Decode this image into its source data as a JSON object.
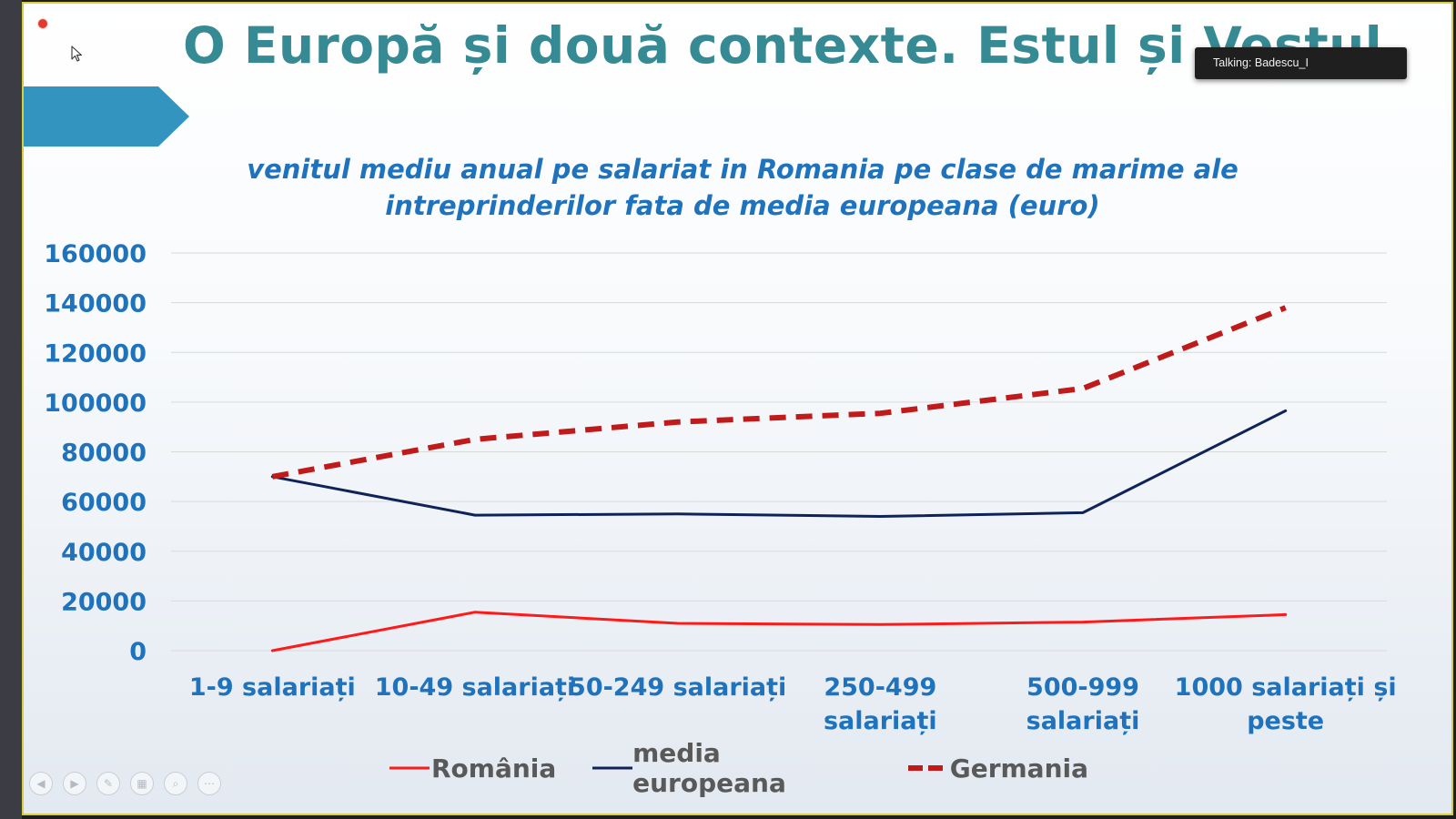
{
  "slide": {
    "title": "O Europă și două contexte. Estul și Vestul"
  },
  "overlay": {
    "talking": "Talking: Badescu_I"
  },
  "icons": {
    "recording": "record-indicator-icon",
    "cursor": "mouse-pointer-icon",
    "nav": [
      "previous-slide-icon",
      "next-slide-icon",
      "pen-icon",
      "grid-view-icon",
      "zoom-icon",
      "more-options-icon"
    ]
  },
  "colors": {
    "title": "#358a94",
    "banner": "#3494c0",
    "axis_text": "#1f73bd",
    "romania": "#ff1a1a",
    "media": "#0f2358",
    "germania": "#c01a1a"
  },
  "chart_data": {
    "type": "line",
    "title": [
      "venitul mediu anual pe salariat in Romania pe clase de marime ale",
      "intreprinderilor fata de media europeana (euro)"
    ],
    "categories": [
      [
        "1-9 salariați"
      ],
      [
        "10-49 salariați"
      ],
      [
        "50-249 salariați"
      ],
      [
        "250-499",
        "salariați"
      ],
      [
        "500-999",
        "salariați"
      ],
      [
        "1000 salariați și",
        "peste"
      ]
    ],
    "y_ticks": [
      "0",
      "20000",
      "40000",
      "60000",
      "80000",
      "100000",
      "120000",
      "140000",
      "160000"
    ],
    "ylim": [
      0,
      160000
    ],
    "grid": true,
    "legend_position": "bottom",
    "series": [
      {
        "name": "România",
        "style": "solid",
        "values": [
          0,
          15500,
          11000,
          10500,
          11500,
          14500
        ]
      },
      {
        "name": "media europeana",
        "style": "solid",
        "values": [
          70000,
          54500,
          55000,
          54000,
          55500,
          96500
        ]
      },
      {
        "name": "Germania",
        "style": "dashed",
        "values": [
          70000,
          85000,
          92000,
          95500,
          105500,
          138000
        ]
      }
    ]
  }
}
